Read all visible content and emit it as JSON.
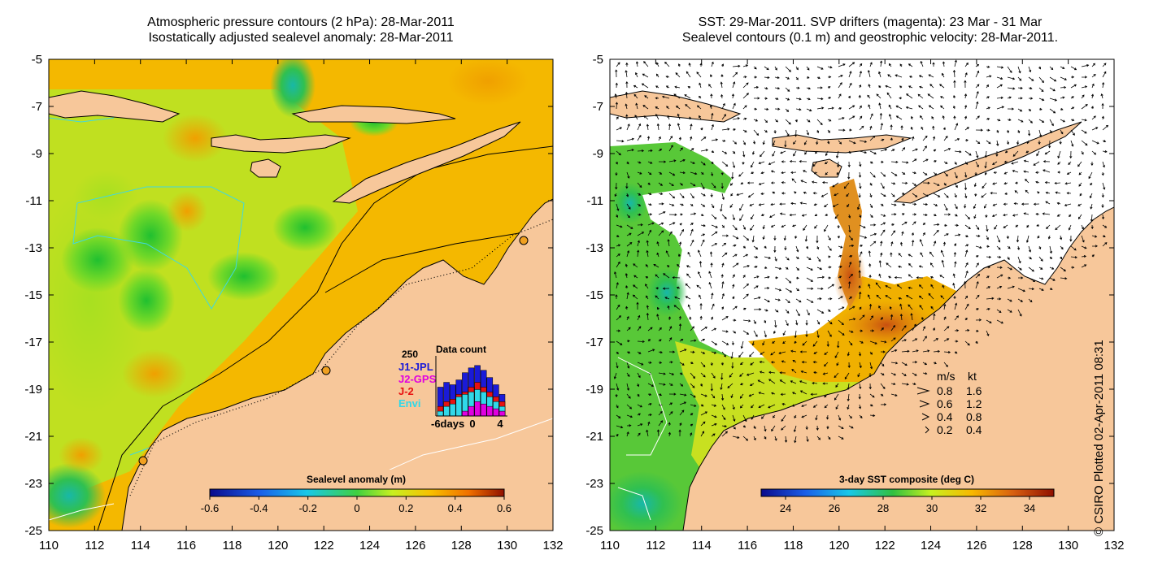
{
  "left_panel": {
    "title_line1": "Atmospheric pressure contours (2 hPa): 28-Mar-2011",
    "title_line2": "Isostatically adjusted sealevel anomaly: 28-Mar-2011",
    "colorbar": {
      "label": "Sealevel anomaly (m)",
      "ticks": [
        "-0.6",
        "-0.4",
        "-0.2",
        "0",
        "0.2",
        "0.4",
        "0.6"
      ],
      "range": [
        -0.6,
        0.6
      ]
    },
    "data_count": {
      "title": "Data count",
      "max_label": "250",
      "legend": [
        {
          "name": "J1-JPL",
          "color": "#1a1ad8"
        },
        {
          "name": "J2-GPS",
          "color": "#e000e0"
        },
        {
          "name": "J-2",
          "color": "#e81010"
        },
        {
          "name": "Envi",
          "color": "#30d8e8"
        }
      ],
      "xticks": [
        "-6days",
        "0",
        "4"
      ],
      "stacked_bars": [
        [
          120,
          40,
          20,
          0
        ],
        [
          140,
          60,
          40,
          0
        ],
        [
          130,
          70,
          50,
          0
        ],
        [
          150,
          90,
          80,
          0
        ],
        [
          180,
          100,
          90,
          20
        ],
        [
          200,
          120,
          100,
          40
        ],
        [
          210,
          140,
          110,
          60
        ],
        [
          190,
          120,
          100,
          50
        ],
        [
          160,
          100,
          80,
          40
        ],
        [
          130,
          80,
          60,
          30
        ],
        [
          90,
          60,
          40,
          20
        ]
      ]
    }
  },
  "right_panel": {
    "title_line1": "SST: 29-Mar-2011. SVP drifters (magenta): 23 Mar - 31 Mar",
    "title_line2": "Sealevel contours (0.1 m) and geostrophic velocity: 28-Mar-2011.",
    "colorbar": {
      "label": "3-day SST composite (deg C)",
      "ticks": [
        "24",
        "26",
        "28",
        "30",
        "32",
        "34"
      ],
      "range": [
        23,
        35
      ]
    },
    "velocity_legend": {
      "header_ms": "m/s",
      "header_kt": "kt",
      "rows": [
        {
          "ms": "0.8",
          "kt": "1.6"
        },
        {
          "ms": "0.6",
          "kt": "1.2"
        },
        {
          "ms": "0.4",
          "kt": "0.8"
        },
        {
          "ms": "0.2",
          "kt": "0.4"
        }
      ]
    }
  },
  "axes": {
    "x_ticks": [
      "110",
      "112",
      "114",
      "116",
      "118",
      "120",
      "122",
      "124",
      "126",
      "128",
      "130",
      "132"
    ],
    "y_ticks": [
      "-5",
      "-7",
      "-9",
      "-11",
      "-13",
      "-15",
      "-17",
      "-19",
      "-21",
      "-23",
      "-25"
    ],
    "lon_range": [
      110,
      132
    ],
    "lat_range": [
      -25,
      -5
    ]
  },
  "credit": "© CSIRO Plotted 02-Apr-2011 08:31",
  "colors": {
    "land": "#f7c79a",
    "ocean_base": "#f0c000",
    "contour_cyan": "#40d8e0"
  }
}
